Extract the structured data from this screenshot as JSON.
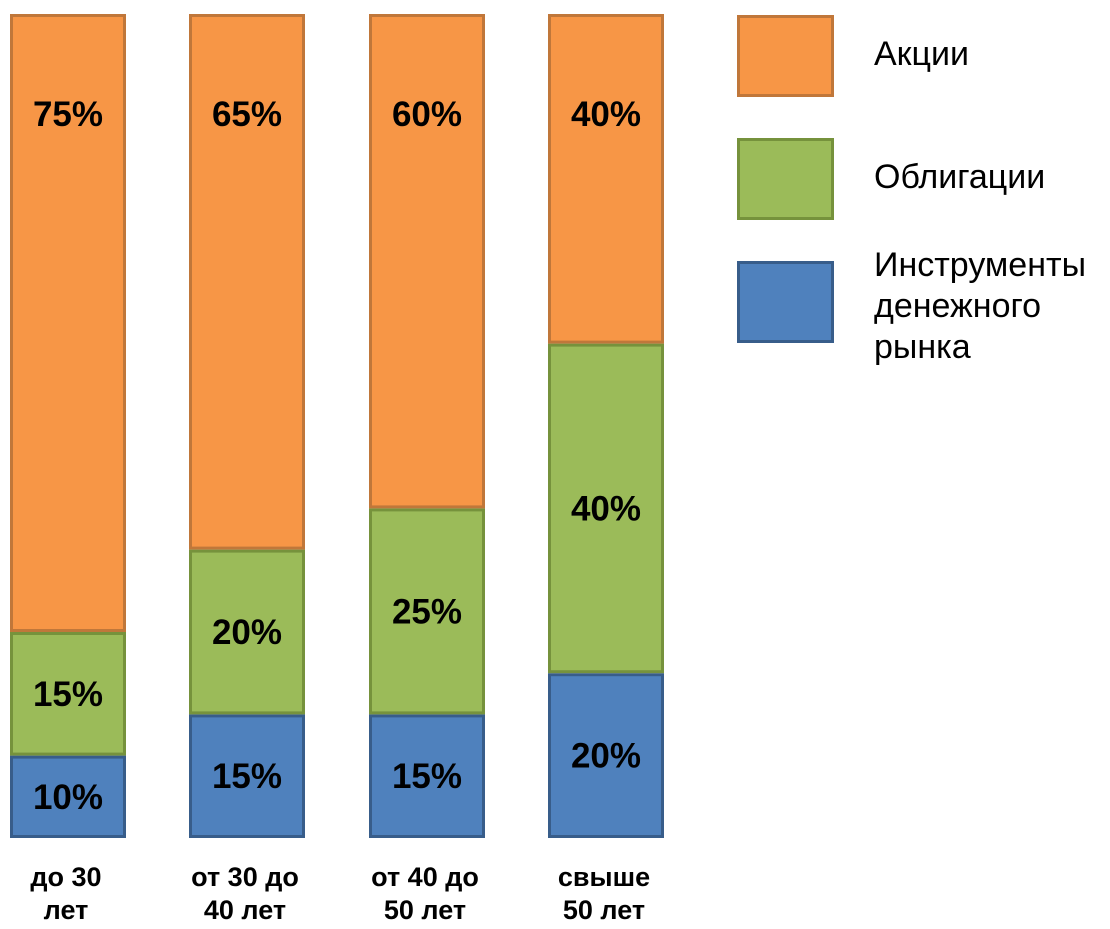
{
  "colors": {
    "equities": "#F79646",
    "equities_border": "#C0773A",
    "bonds": "#9BBB59",
    "bonds_border": "#76923C",
    "money_market": "#4F81BD",
    "money_market_border": "#385D8A"
  },
  "chart_data": {
    "type": "bar",
    "stacked": true,
    "normalized_percent": true,
    "categories": [
      "до 30 лет",
      "от 30 до 40 лет",
      "от 40 до 50 лет",
      "свыше 50 лет"
    ],
    "category_lines": [
      [
        "до 30",
        "лет"
      ],
      [
        "от 30 до",
        "40 лет"
      ],
      [
        "от 40 до",
        "50 лет"
      ],
      [
        "свыше",
        "50 лет"
      ]
    ],
    "series": [
      {
        "name": "Инструменты денежного рынка",
        "name_lines": [
          "Инструменты",
          "денежного",
          "рынка"
        ],
        "values": [
          10,
          15,
          15,
          20
        ],
        "labels": [
          "10%",
          "15%",
          "15%",
          "20%"
        ],
        "color": "#4F81BD"
      },
      {
        "name": "Облигации",
        "name_lines": [
          "Облигации"
        ],
        "values": [
          15,
          20,
          25,
          40
        ],
        "labels": [
          "15%",
          "20%",
          "25%",
          "40%"
        ],
        "color": "#9BBB59"
      },
      {
        "name": "Акции",
        "name_lines": [
          "Акции"
        ],
        "values": [
          75,
          65,
          60,
          40
        ],
        "labels": [
          "75%",
          "65%",
          "60%",
          "40%"
        ],
        "color": "#F79646"
      }
    ],
    "ylim": [
      0,
      100
    ],
    "grid": false,
    "legend_position": "right",
    "legend_order": [
      "Акции",
      "Облигации",
      "Инструменты денежного рынка"
    ]
  }
}
